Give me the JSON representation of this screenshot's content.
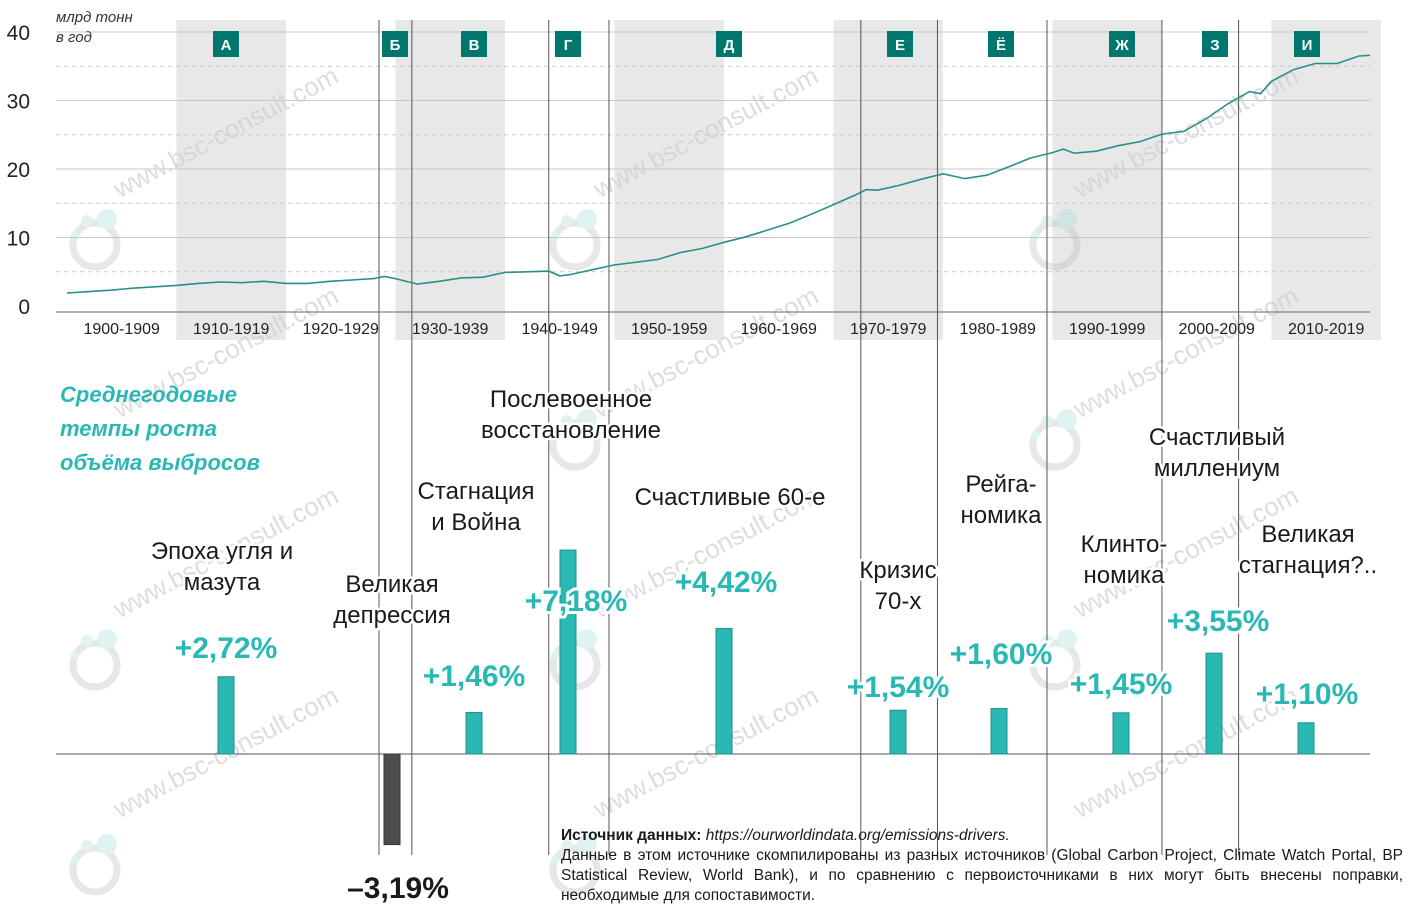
{
  "colors": {
    "teal": "#2ab8b4",
    "badge": "#00776e",
    "band": "#e8e8e8",
    "negative": "#4d4d4d",
    "line": "#2a8f8a"
  },
  "top_chart": {
    "unit_label": [
      "млрд тонн",
      "в год"
    ],
    "y_ticks": [
      "0",
      "10",
      "20",
      "30",
      "40"
    ],
    "decades": [
      "1900-1909",
      "1910-1919",
      "1920-1929",
      "1930-1939",
      "1940-1949",
      "1950-1959",
      "1960-1969",
      "1970-1979",
      "1980-1989",
      "1990-1999",
      "2000-2009",
      "2010-2019"
    ],
    "periods": [
      {
        "letter": "А",
        "start": 1910,
        "end": 1929
      },
      {
        "letter": "Б",
        "start": 1929,
        "end": 1932
      },
      {
        "letter": "В",
        "start": 1932,
        "end": 1940
      },
      {
        "letter": "Г",
        "start": 1945,
        "end": 1950
      },
      {
        "letter": "Д",
        "start": 1950,
        "end": 1973
      },
      {
        "letter": "Е",
        "start": 1973,
        "end": 1980
      },
      {
        "letter": "Ё",
        "start": 1980,
        "end": 1990
      },
      {
        "letter": "Ж",
        "start": 1990,
        "end": 2000
      },
      {
        "letter": "З",
        "start": 2000,
        "end": 2010
      },
      {
        "letter": "И",
        "start": 2010,
        "end": 2019
      }
    ]
  },
  "chart_data": {
    "type": "line",
    "title": "",
    "ylabel": "млрд тонн в год",
    "ylim": [
      0,
      40
    ],
    "x": [
      1900,
      1902,
      1904,
      1906,
      1908,
      1910,
      1912,
      1914,
      1916,
      1918,
      1920,
      1922,
      1924,
      1926,
      1928,
      1929,
      1930,
      1932,
      1934,
      1936,
      1938,
      1940,
      1942,
      1944,
      1945,
      1946,
      1948,
      1950,
      1952,
      1954,
      1956,
      1958,
      1960,
      1962,
      1964,
      1966,
      1968,
      1970,
      1972,
      1973,
      1974,
      1976,
      1978,
      1980,
      1982,
      1984,
      1986,
      1988,
      1990,
      1991,
      1992,
      1994,
      1996,
      1998,
      2000,
      2002,
      2004,
      2006,
      2008,
      2009,
      2010,
      2012,
      2014,
      2016,
      2018,
      2019
    ],
    "series": [
      {
        "values": [
          1.9,
          2.1,
          2.3,
          2.6,
          2.8,
          3.0,
          3.3,
          3.5,
          3.4,
          3.6,
          3.3,
          3.3,
          3.6,
          3.8,
          4.0,
          4.3,
          4.0,
          3.2,
          3.6,
          4.1,
          4.2,
          4.9,
          5.0,
          5.1,
          4.4,
          4.6,
          5.3,
          6.0,
          6.4,
          6.8,
          7.8,
          8.4,
          9.3,
          10.1,
          11.1,
          12.1,
          13.4,
          14.8,
          16.2,
          17.0,
          16.9,
          17.6,
          18.5,
          19.3,
          18.6,
          19.1,
          20.3,
          21.6,
          22.4,
          22.9,
          22.3,
          22.6,
          23.4,
          24.0,
          25.1,
          25.5,
          27.3,
          29.5,
          31.3,
          31.0,
          32.8,
          34.5,
          35.4,
          35.4,
          36.5,
          36.6
        ]
      }
    ],
    "bars": {
      "labels": [
        "Эпоха угля и мазута",
        "Великая депрессия",
        "Стагнация и Война",
        "Послевоенное восстановление",
        "Счастливые 60-е",
        "Кризис 70-х",
        "Рейга-номика",
        "Клинто-номика",
        "Счастливый миллениум",
        "Великая стагнация?.."
      ],
      "values": [
        2.72,
        -3.19,
        1.46,
        7.18,
        4.42,
        1.54,
        1.6,
        1.45,
        3.55,
        1.1
      ],
      "value_labels": [
        "+2,72%",
        "–3,19%",
        "+1,46%",
        "+7,18%",
        "+4,42%",
        "+1,54%",
        "+1,60%",
        "+1,45%",
        "+3,55%",
        "+1,10%"
      ]
    }
  },
  "bar_section": {
    "subtitle": [
      "Среднегодовые",
      "темпы роста",
      "объёма выбросов"
    ],
    "eras": [
      [
        "Эпоха угля и",
        "мазута"
      ],
      [
        "Великая",
        "депрессия"
      ],
      [
        "Стагнация",
        "и Война"
      ],
      [
        "Послевоенное",
        "восстановление"
      ],
      [
        "Счастливые 60-е"
      ],
      [
        "Кризис",
        "70-х"
      ],
      [
        "Рейга-",
        "номика"
      ],
      [
        "Клинто-",
        "номика"
      ],
      [
        "Счастливый",
        "миллениум"
      ],
      [
        "Великая",
        "стагнация?.."
      ]
    ]
  },
  "watermark": "www.bsc-consult.com",
  "source": {
    "label": "Источник данных:",
    "url": "https://ourworldindata.org/emissions-drivers.",
    "note": "Данные в этом источнике скомпилированы из разных источников (Global Carbon Project, Climate Watch Portal, BP Statistical Review, World Bank), и по сравнению с первоисточниками в них могут быть внесены поправки, необходимые для сопоставимости."
  }
}
